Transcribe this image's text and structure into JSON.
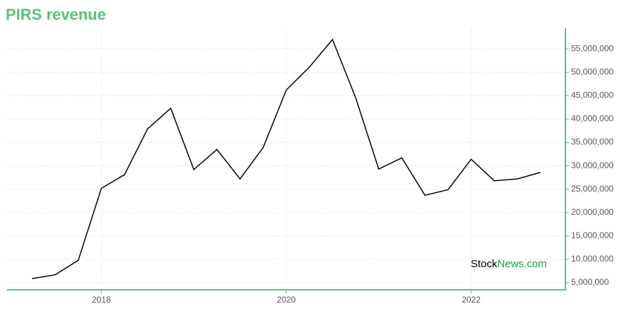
{
  "chart_data": {
    "type": "line",
    "title": "PIRS revenue",
    "watermark": {
      "brand": "Stock",
      "suffix": "News.com"
    },
    "x": [
      2017.25,
      2017.5,
      2017.75,
      2018,
      2018.25,
      2018.5,
      2018.75,
      2019,
      2019.25,
      2019.5,
      2019.75,
      2020,
      2020.25,
      2020.5,
      2020.75,
      2021,
      2021.25,
      2021.5,
      2021.75,
      2022,
      2022.25,
      2022.5,
      2022.75
    ],
    "values": [
      5900000,
      6700000,
      9800000,
      25200000,
      28100000,
      37900000,
      42300000,
      29200000,
      33500000,
      27200000,
      33900000,
      46200000,
      51100000,
      57000000,
      44600000,
      29300000,
      31700000,
      23700000,
      24900000,
      31400000,
      26800000,
      27200000,
      28600000
    ],
    "color": "#000000",
    "xlim": [
      2016.98,
      2023.02
    ],
    "xticks": [
      2018,
      2020,
      2022
    ],
    "ylim": [
      3500000,
      59400000
    ],
    "yticks": [
      {
        "value": 5000000,
        "label": "5,000,000"
      },
      {
        "value": 10000000,
        "label": "10,000,000"
      },
      {
        "value": 15000000,
        "label": "15,000,000"
      },
      {
        "value": 20000000,
        "label": "20,000,000"
      },
      {
        "value": 25000000,
        "label": "25,000,000"
      },
      {
        "value": 30000000,
        "label": "30,000,000"
      },
      {
        "value": 35000000,
        "label": "35,000,000"
      },
      {
        "value": 40000000,
        "label": "40,000,000"
      },
      {
        "value": 45000000,
        "label": "45,000,000"
      },
      {
        "value": 50000000,
        "label": "50,000,000"
      },
      {
        "value": 55000000,
        "label": "55,000,000"
      }
    ],
    "grid": true,
    "axis_color": "#5bbf7f"
  }
}
